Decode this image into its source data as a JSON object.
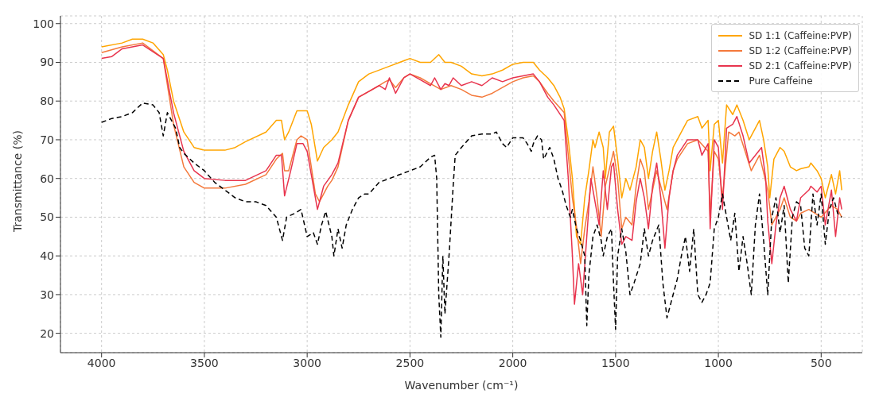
{
  "chart_data": {
    "type": "line",
    "xlabel": "Wavenumber (cm⁻¹)",
    "ylabel": "Transmittance (%)",
    "xlim": [
      4200,
      300
    ],
    "xticks": [
      4000,
      3500,
      3000,
      2500,
      2000,
      1500,
      1000,
      500
    ],
    "ylim": [
      15,
      102
    ],
    "yticks": [
      20,
      30,
      40,
      50,
      60,
      70,
      80,
      90,
      100
    ],
    "grid": true,
    "legend": "top right",
    "marker": "none",
    "series": [
      {
        "name": "SD 1:1 (Caffeine:PVP)",
        "color": "#ffa500",
        "line_style": "solid",
        "x": [
          4000,
          3900,
          3850,
          3800,
          3750,
          3700,
          3680,
          3650,
          3600,
          3550,
          3500,
          3400,
          3350,
          3300,
          3200,
          3150,
          3125,
          3110,
          3090,
          3050,
          3000,
          2980,
          2950,
          2920,
          2880,
          2850,
          2800,
          2750,
          2700,
          2600,
          2550,
          2500,
          2450,
          2400,
          2360,
          2330,
          2300,
          2250,
          2200,
          2150,
          2100,
          2050,
          2000,
          1950,
          1900,
          1870,
          1830,
          1800,
          1770,
          1750,
          1730,
          1710,
          1690,
          1670,
          1650,
          1630,
          1610,
          1600,
          1580,
          1560,
          1550,
          1530,
          1510,
          1490,
          1470,
          1450,
          1430,
          1400,
          1380,
          1360,
          1340,
          1320,
          1300,
          1280,
          1260,
          1240,
          1220,
          1200,
          1150,
          1100,
          1080,
          1050,
          1040,
          1020,
          1000,
          980,
          960,
          930,
          910,
          880,
          850,
          820,
          800,
          780,
          760,
          750,
          730,
          700,
          680,
          650,
          620,
          600,
          560,
          550,
          520,
          500,
          480,
          450,
          430,
          410,
          400
        ],
        "values": [
          94,
          95,
          96,
          96,
          95,
          92,
          88,
          80,
          72,
          68,
          67.3,
          67.3,
          68,
          69.5,
          72,
          75,
          75,
          70,
          72,
          77.5,
          77.5,
          74,
          64.5,
          68,
          70,
          72,
          79,
          85,
          87,
          89,
          90,
          91,
          90,
          90,
          92,
          90,
          90,
          89,
          87,
          86.5,
          87,
          88,
          89.5,
          90,
          90,
          88,
          86,
          84,
          81,
          78,
          70,
          60,
          45,
          43,
          55,
          62,
          70,
          68,
          72,
          68,
          60,
          72,
          73.5,
          65,
          55,
          60,
          57,
          63,
          70,
          68,
          60,
          67,
          72,
          65,
          57,
          62,
          68,
          70,
          75,
          76,
          73,
          75,
          62,
          74,
          75,
          64,
          79,
          76.5,
          79,
          75,
          70,
          73,
          75,
          70,
          63,
          55,
          65,
          68,
          67,
          63,
          62,
          62.5,
          63,
          64,
          62,
          60,
          55,
          61,
          56,
          62,
          57
        ]
      },
      {
        "name": "SD 1:2 (Caffeine:PVP)",
        "color": "#f4793b",
        "line_style": "solid",
        "x": [
          4000,
          3900,
          3800,
          3700,
          3650,
          3600,
          3550,
          3500,
          3400,
          3300,
          3200,
          3150,
          3120,
          3110,
          3090,
          3050,
          3030,
          3000,
          2960,
          2940,
          2900,
          2880,
          2850,
          2800,
          2750,
          2700,
          2650,
          2620,
          2600,
          2570,
          2530,
          2500,
          2450,
          2400,
          2350,
          2300,
          2250,
          2200,
          2150,
          2100,
          2050,
          2000,
          1950,
          1900,
          1870,
          1830,
          1800,
          1750,
          1730,
          1710,
          1690,
          1670,
          1650,
          1630,
          1610,
          1590,
          1570,
          1550,
          1510,
          1490,
          1470,
          1450,
          1420,
          1400,
          1380,
          1360,
          1340,
          1300,
          1280,
          1250,
          1220,
          1200,
          1150,
          1100,
          1050,
          1040,
          1020,
          1000,
          980,
          950,
          920,
          900,
          870,
          840,
          820,
          800,
          760,
          740,
          700,
          680,
          650,
          620,
          600,
          560,
          500,
          450,
          420,
          400
        ],
        "values": [
          92.5,
          94,
          95,
          91,
          74,
          63,
          59,
          57.5,
          57.5,
          58.5,
          61,
          65,
          66.5,
          62,
          62,
          70,
          71,
          70,
          56,
          54,
          58,
          59.5,
          63,
          75,
          81,
          82.5,
          84,
          85,
          85.5,
          83.5,
          86,
          87,
          86,
          84.5,
          83,
          84,
          83,
          81.5,
          81,
          82,
          83.5,
          85,
          86,
          86.5,
          85,
          82,
          80,
          77,
          66,
          55,
          47.5,
          38,
          47,
          54,
          63,
          55,
          45,
          58,
          67,
          60,
          47,
          50,
          48,
          58,
          65,
          62,
          52,
          62,
          58,
          52,
          62,
          65,
          69,
          70,
          67,
          50,
          67,
          65,
          55,
          72,
          71,
          72,
          67,
          62,
          64,
          66,
          57,
          48,
          52,
          55,
          50,
          49,
          51,
          52,
          50,
          53,
          52,
          50
        ]
      },
      {
        "name": "SD 2:1 (Caffeine:PVP)",
        "color": "#e8344e",
        "line_style": "solid",
        "x": [
          4000,
          3950,
          3900,
          3800,
          3700,
          3650,
          3600,
          3550,
          3500,
          3400,
          3300,
          3200,
          3150,
          3125,
          3110,
          3080,
          3050,
          3020,
          3000,
          2960,
          2950,
          2920,
          2880,
          2850,
          2800,
          2750,
          2700,
          2650,
          2620,
          2600,
          2570,
          2530,
          2500,
          2450,
          2400,
          2380,
          2350,
          2330,
          2310,
          2290,
          2250,
          2200,
          2150,
          2100,
          2050,
          2000,
          1950,
          1900,
          1870,
          1830,
          1800,
          1750,
          1730,
          1710,
          1700,
          1680,
          1660,
          1640,
          1620,
          1600,
          1580,
          1560,
          1540,
          1520,
          1510,
          1490,
          1470,
          1450,
          1420,
          1400,
          1380,
          1360,
          1340,
          1320,
          1300,
          1280,
          1260,
          1240,
          1220,
          1200,
          1150,
          1100,
          1080,
          1050,
          1040,
          1020,
          1000,
          980,
          960,
          930,
          910,
          880,
          850,
          820,
          790,
          770,
          760,
          740,
          720,
          700,
          680,
          650,
          620,
          600,
          560,
          550,
          520,
          500,
          480,
          450,
          430,
          410,
          400
        ],
        "values": [
          91,
          91.5,
          93.5,
          94.5,
          91,
          77,
          67,
          62,
          60,
          59.5,
          59.5,
          62,
          66,
          66,
          55.5,
          62,
          69,
          69,
          67,
          55,
          52,
          58,
          61,
          64,
          75,
          81,
          82.5,
          84,
          83,
          86,
          82,
          86,
          87,
          85.5,
          84,
          86,
          83,
          84.5,
          84,
          86,
          84,
          85,
          84,
          86,
          85,
          86,
          86.5,
          87,
          85,
          81,
          79,
          75,
          60,
          40,
          27.5,
          38,
          30,
          45,
          60,
          54,
          48,
          62,
          52,
          63,
          64,
          52,
          43,
          45,
          44,
          54,
          60,
          55,
          47,
          58,
          64,
          55,
          42,
          55,
          62,
          66,
          70,
          70,
          66,
          69,
          47,
          70,
          68,
          52,
          73,
          74,
          76,
          71,
          64,
          66,
          68,
          60,
          49,
          38,
          48,
          55,
          58,
          52,
          49,
          55,
          57,
          58,
          56.5,
          58,
          48,
          57,
          45,
          55,
          52
        ]
      },
      {
        "name": "Pure Caffeine",
        "color": "#000000",
        "line_style": "dashed",
        "x": [
          4000,
          3950,
          3900,
          3850,
          3800,
          3750,
          3720,
          3700,
          3690,
          3680,
          3660,
          3640,
          3620,
          3600,
          3550,
          3500,
          3450,
          3400,
          3350,
          3300,
          3250,
          3200,
          3150,
          3120,
          3100,
          3060,
          3030,
          3000,
          2970,
          2950,
          2930,
          2910,
          2880,
          2870,
          2850,
          2830,
          2810,
          2780,
          2750,
          2720,
          2700,
          2650,
          2600,
          2550,
          2500,
          2450,
          2400,
          2380,
          2370,
          2360,
          2350,
          2340,
          2330,
          2310,
          2290,
          2280,
          2250,
          2200,
          2150,
          2100,
          2080,
          2050,
          2030,
          2000,
          1950,
          1930,
          1910,
          1900,
          1880,
          1860,
          1850,
          1820,
          1800,
          1780,
          1760,
          1740,
          1720,
          1710,
          1690,
          1670,
          1650,
          1640,
          1630,
          1610,
          1590,
          1570,
          1560,
          1540,
          1520,
          1510,
          1500,
          1490,
          1470,
          1450,
          1430,
          1410,
          1380,
          1360,
          1340,
          1320,
          1290,
          1270,
          1250,
          1230,
          1200,
          1180,
          1160,
          1140,
          1120,
          1100,
          1080,
          1060,
          1040,
          1020,
          1000,
          980,
          960,
          940,
          920,
          900,
          880,
          860,
          840,
          820,
          800,
          780,
          760,
          740,
          720,
          700,
          680,
          660,
          640,
          620,
          600,
          580,
          560,
          540,
          520,
          500,
          480,
          460,
          440,
          420,
          400
        ],
        "values": [
          74.5,
          75.5,
          76,
          77,
          79.5,
          79,
          77,
          71,
          74,
          77,
          75,
          73,
          68,
          66.5,
          64,
          62,
          59,
          57,
          55,
          54,
          54,
          53,
          50,
          44,
          50,
          51,
          52,
          45,
          46,
          43,
          48,
          51.5,
          45,
          40,
          47,
          42,
          48,
          52,
          55,
          56,
          56,
          59,
          60,
          61,
          62,
          63,
          65.5,
          66,
          60,
          30,
          19,
          40,
          25,
          40,
          58,
          66,
          68,
          71,
          71.5,
          71.5,
          72,
          69,
          68,
          70.5,
          70.5,
          69,
          67,
          69,
          71,
          70,
          65,
          68,
          65,
          60,
          57,
          53,
          50,
          52,
          47,
          44,
          40,
          22,
          35,
          45,
          48,
          44,
          40,
          45,
          47,
          33,
          21,
          40,
          47,
          41,
          30,
          33,
          38,
          47,
          40,
          44,
          48,
          33,
          24,
          28,
          34,
          40,
          45,
          36,
          47,
          30,
          28,
          30,
          33,
          47,
          50,
          56,
          50,
          44,
          51,
          36,
          45,
          38,
          30,
          48,
          56,
          44,
          30,
          50,
          55,
          46,
          53,
          33,
          50,
          54,
          53,
          42,
          40,
          56,
          48,
          56,
          43,
          52,
          55,
          51,
          50
        ]
      }
    ]
  }
}
